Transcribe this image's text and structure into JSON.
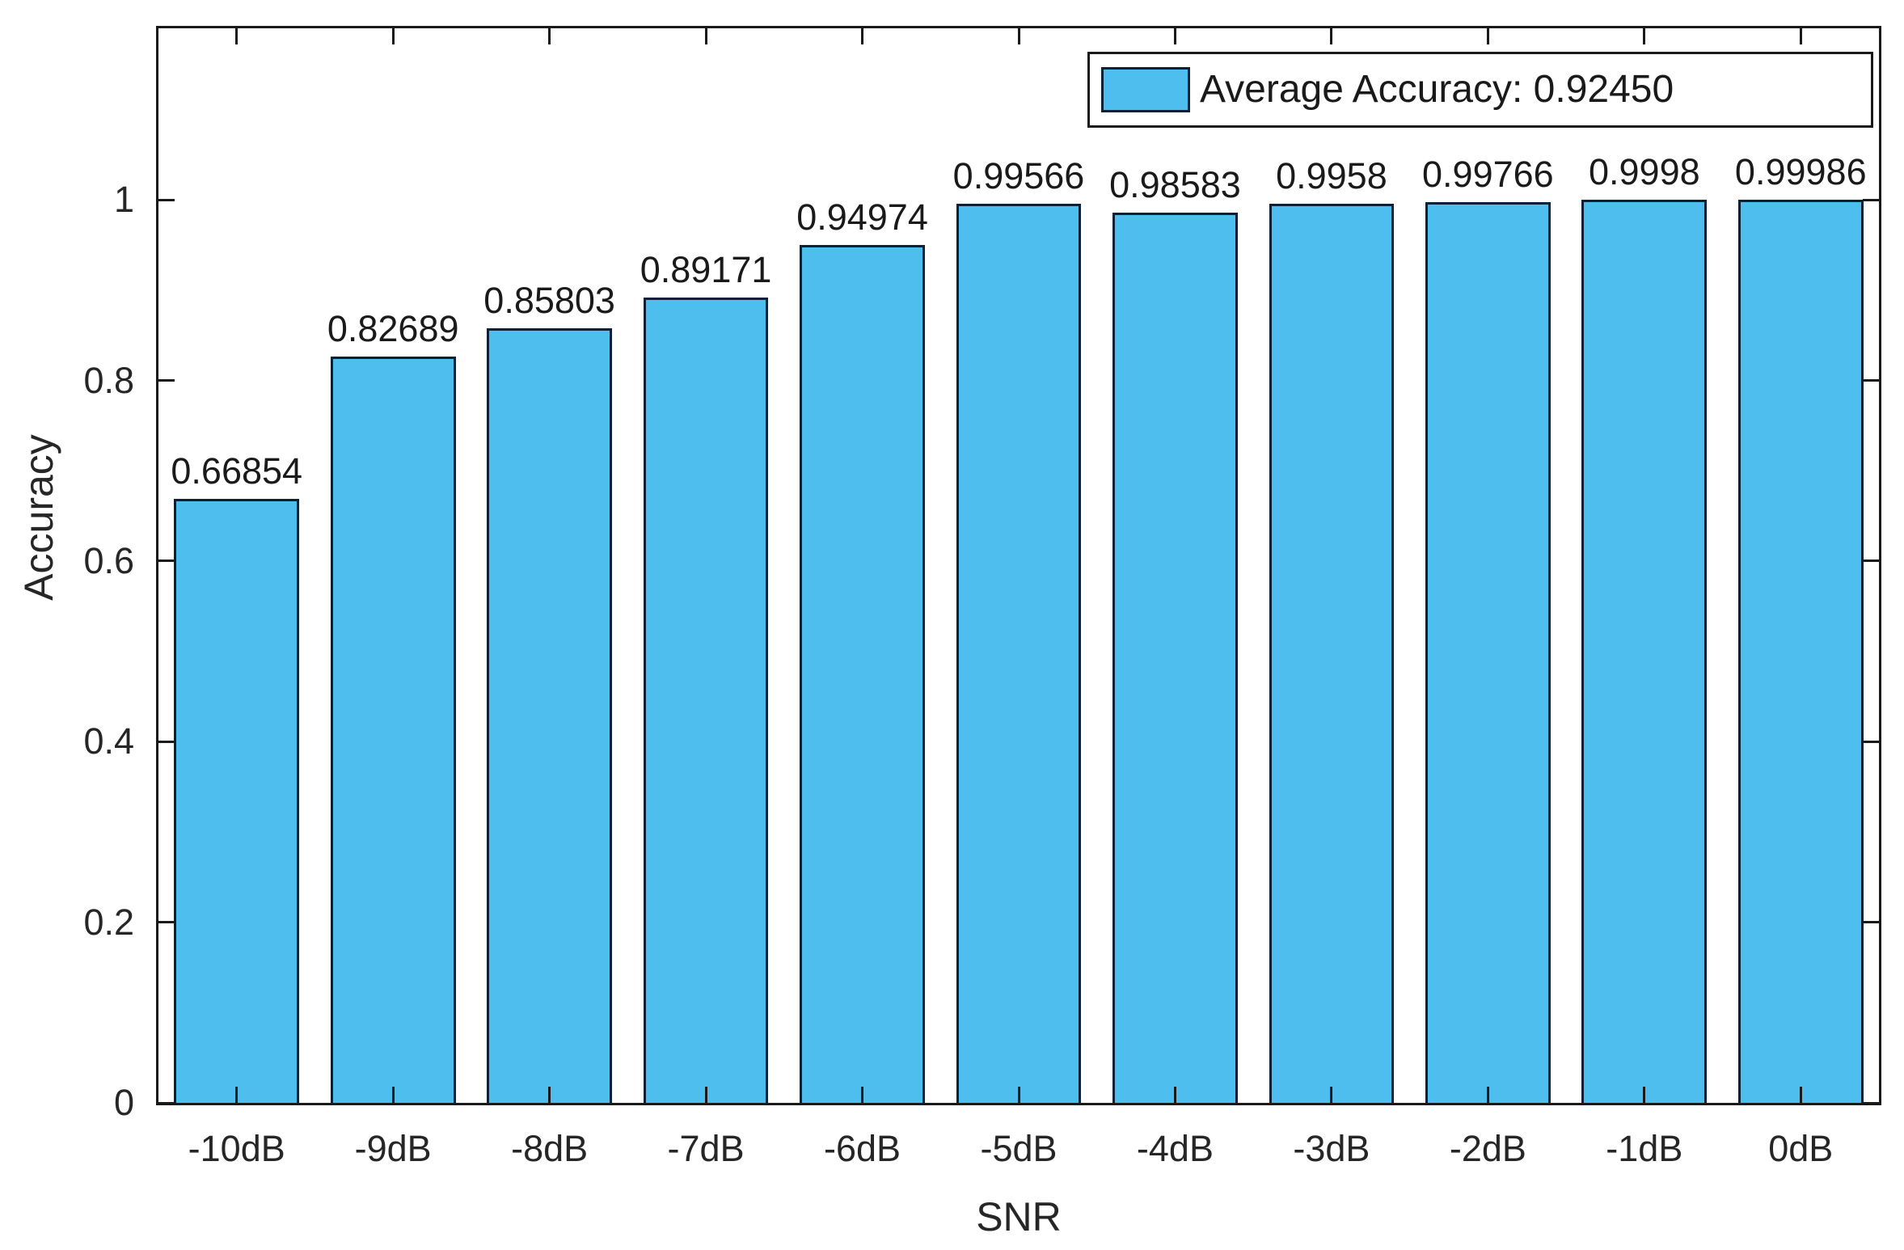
{
  "chart_data": {
    "type": "bar",
    "title": "",
    "categories": [
      "-10dB",
      "-9dB",
      "-8dB",
      "-7dB",
      "-6dB",
      "-5dB",
      "-4dB",
      "-3dB",
      "-2dB",
      "-1dB",
      "0dB"
    ],
    "values": [
      0.66854,
      0.82689,
      0.85803,
      0.89171,
      0.94974,
      0.99566,
      0.98583,
      0.9958,
      0.99766,
      0.9998,
      0.99986
    ],
    "bar_value_labels": [
      "0.66854",
      "0.82689",
      "0.85803",
      "0.89171",
      "0.94974",
      "0.99566",
      "0.98583",
      "0.9958",
      "0.99766",
      "0.9998",
      "0.99986"
    ],
    "xlabel": "SNR",
    "ylabel": "Accuracy",
    "ylim": [
      0,
      1.19
    ],
    "yticks": [
      0,
      0.2,
      0.4,
      0.6,
      0.8,
      1
    ],
    "ytick_labels": [
      "0",
      "0.2",
      "0.4",
      "0.6",
      "0.8",
      "1"
    ],
    "grid": false,
    "legend": {
      "label": "Average Accuracy: 0.92450",
      "position": "top-right"
    },
    "colors": {
      "bar_fill": "#4DBEEE",
      "bar_edge": "#0d2136",
      "axis": "#1a1a1a",
      "tick_text": "#262626",
      "background": "#ffffff"
    },
    "bar_width_fraction": 0.8
  }
}
